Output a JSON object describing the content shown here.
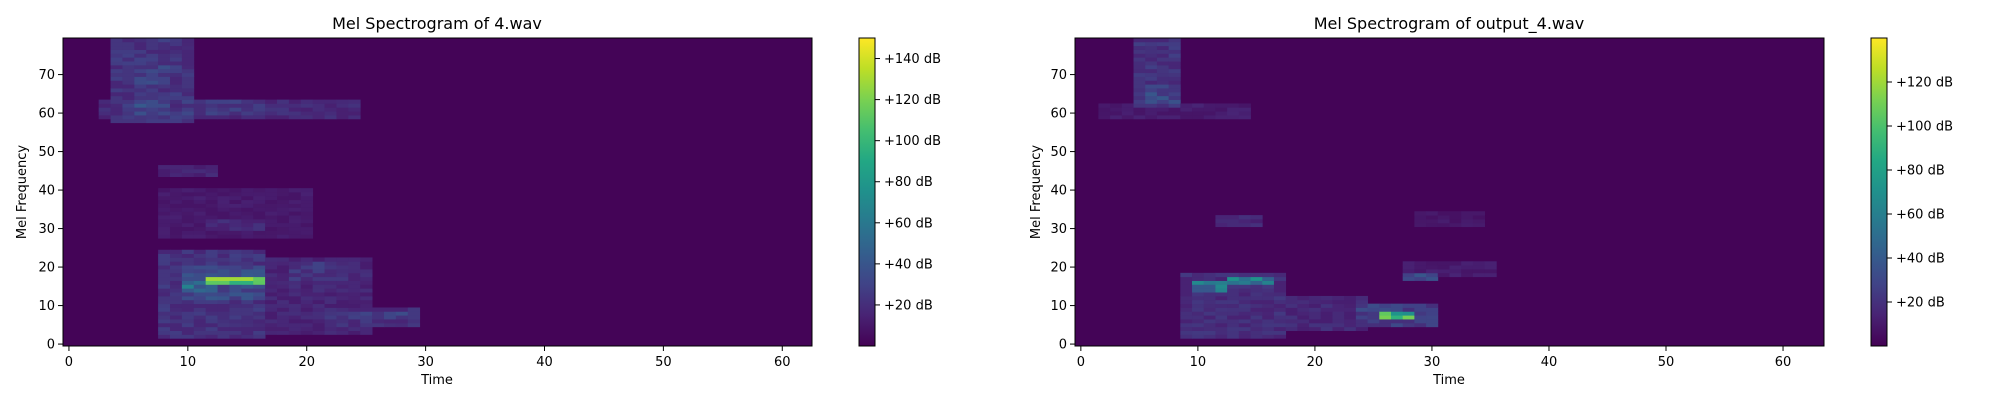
{
  "chart_data": [
    {
      "type": "heatmap",
      "title": "Mel Spectrogram of 4.wav",
      "xlabel": "Time",
      "ylabel": "Mel Frequency",
      "xlim": [
        -0.5,
        62.5
      ],
      "ylim": [
        -0.5,
        79.5
      ],
      "xticks": [
        0,
        10,
        20,
        30,
        40,
        50,
        60
      ],
      "yticks": [
        0,
        10,
        20,
        30,
        40,
        50,
        60,
        70
      ],
      "colormap": "viridis",
      "colorbar": {
        "vmin": 0,
        "vmax": 150,
        "ticks": [
          20,
          40,
          60,
          80,
          100,
          120,
          140
        ],
        "tick_labels": [
          "+20 dB",
          "+40 dB",
          "+60 dB",
          "+80 dB",
          "+100 dB",
          "+120 dB",
          "+140 dB"
        ]
      },
      "time_frames": 63,
      "mel_bins": 80,
      "energy_regions": [
        {
          "t": [
            4,
            10
          ],
          "f": [
            58,
            79
          ],
          "db": 30
        },
        {
          "t": [
            6,
            8
          ],
          "f": [
            60,
            63
          ],
          "db": 45
        },
        {
          "t": [
            6,
            8
          ],
          "f": [
            68,
            72
          ],
          "db": 38
        },
        {
          "t": [
            3,
            24
          ],
          "f": [
            59,
            63
          ],
          "db": 25
        },
        {
          "t": [
            10,
            16
          ],
          "f": [
            60,
            63
          ],
          "db": 35
        },
        {
          "t": [
            20,
            24
          ],
          "f": [
            60,
            62
          ],
          "db": 25
        },
        {
          "t": [
            8,
            12
          ],
          "f": [
            44,
            46
          ],
          "db": 22
        },
        {
          "t": [
            8,
            20
          ],
          "f": [
            28,
            40
          ],
          "db": 15
        },
        {
          "t": [
            12,
            16
          ],
          "f": [
            30,
            32
          ],
          "db": 25
        },
        {
          "t": [
            8,
            16
          ],
          "f": [
            2,
            24
          ],
          "db": 30
        },
        {
          "t": [
            10,
            16
          ],
          "f": [
            12,
            20
          ],
          "db": 45
        },
        {
          "t": [
            16,
            25
          ],
          "f": [
            3,
            22
          ],
          "db": 22
        },
        {
          "t": [
            19,
            23
          ],
          "f": [
            17,
            21
          ],
          "db": 32
        },
        {
          "t": [
            22,
            29
          ],
          "f": [
            5,
            9
          ],
          "db": 28
        },
        {
          "t": [
            24,
            28
          ],
          "f": [
            7,
            8
          ],
          "db": 40
        },
        {
          "t": [
            10,
            12
          ],
          "f": [
            14,
            16
          ],
          "db": 70
        },
        {
          "t": [
            12,
            14
          ],
          "f": [
            16,
            17
          ],
          "db": 90
        },
        {
          "t": [
            12,
            16
          ],
          "f": [
            16,
            17
          ],
          "db": 145
        }
      ]
    },
    {
      "type": "heatmap",
      "title": "Mel Spectrogram of output_4.wav",
      "xlabel": "Time",
      "ylabel": "Mel Frequency",
      "xlim": [
        -0.5,
        63.5
      ],
      "ylim": [
        -0.5,
        79.5
      ],
      "xticks": [
        0,
        10,
        20,
        30,
        40,
        50,
        60
      ],
      "yticks": [
        0,
        10,
        20,
        30,
        40,
        50,
        60,
        70
      ],
      "colormap": "viridis",
      "colorbar": {
        "vmin": 0,
        "vmax": 140,
        "ticks": [
          20,
          40,
          60,
          80,
          100,
          120
        ],
        "tick_labels": [
          "+20 dB",
          "+40 dB",
          "+60 dB",
          "+80 dB",
          "+100 dB",
          "+120 dB"
        ]
      },
      "time_frames": 64,
      "mel_bins": 80,
      "energy_regions": [
        {
          "t": [
            5,
            8
          ],
          "f": [
            62,
            79
          ],
          "db": 28
        },
        {
          "t": [
            6,
            8
          ],
          "f": [
            63,
            67
          ],
          "db": 40
        },
        {
          "t": [
            2,
            14
          ],
          "f": [
            59,
            62
          ],
          "db": 15
        },
        {
          "t": [
            9,
            17
          ],
          "f": [
            2,
            18
          ],
          "db": 25
        },
        {
          "t": [
            10,
            12
          ],
          "f": [
            14,
            16
          ],
          "db": 70
        },
        {
          "t": [
            13,
            16
          ],
          "f": [
            16,
            17
          ],
          "db": 80
        },
        {
          "t": [
            12,
            15
          ],
          "f": [
            31,
            33
          ],
          "db": 22
        },
        {
          "t": [
            16,
            24
          ],
          "f": [
            4,
            12
          ],
          "db": 22
        },
        {
          "t": [
            24,
            30
          ],
          "f": [
            5,
            10
          ],
          "db": 35
        },
        {
          "t": [
            26,
            28
          ],
          "f": [
            7,
            8
          ],
          "db": 125
        },
        {
          "t": [
            28,
            30
          ],
          "f": [
            17,
            18
          ],
          "db": 40
        },
        {
          "t": [
            28,
            35
          ],
          "f": [
            18,
            21
          ],
          "db": 15
        },
        {
          "t": [
            29,
            34
          ],
          "f": [
            31,
            34
          ],
          "db": 12
        }
      ]
    }
  ]
}
